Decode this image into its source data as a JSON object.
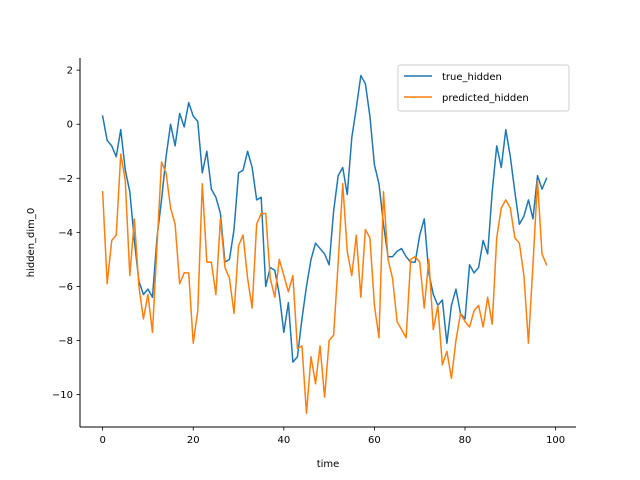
{
  "chart_data": {
    "type": "line",
    "title": "",
    "xlabel": "time",
    "ylabel": "hidden_dim_0",
    "xlim": [
      -5,
      104.5
    ],
    "ylim": [
      -11.2,
      2.45
    ],
    "xticks": [
      0,
      20,
      40,
      60,
      80,
      100
    ],
    "yticks": [
      2,
      0,
      -2,
      -4,
      -6,
      -8,
      -10
    ],
    "xtick_labels": [
      "0",
      "20",
      "40",
      "60",
      "80",
      "100"
    ],
    "ytick_labels": [
      "2",
      "0",
      "−2",
      "−4",
      "−6",
      "−8",
      "−10"
    ],
    "grid": false,
    "legend_position": "top-right",
    "series": [
      {
        "name": "true_hidden",
        "color": "#1f77b4",
        "values": [
          0.3,
          -0.6,
          -0.8,
          -1.2,
          -0.2,
          -1.7,
          -2.5,
          -4.3,
          -5.8,
          -6.3,
          -6.1,
          -6.4,
          -4.2,
          -2.8,
          -1.2,
          0.0,
          -0.8,
          0.4,
          -0.1,
          0.8,
          0.3,
          0.1,
          -1.8,
          -1.0,
          -2.4,
          -2.7,
          -3.3,
          -5.1,
          -5.0,
          -3.9,
          -1.8,
          -1.7,
          -1.0,
          -1.6,
          -2.8,
          -2.7,
          -6.0,
          -5.3,
          -5.4,
          -6.3,
          -7.7,
          -6.6,
          -8.8,
          -8.6,
          -7.2,
          -6.0,
          -5.0,
          -4.4,
          -4.6,
          -4.8,
          -5.2,
          -3.2,
          -1.9,
          -1.6,
          -2.6,
          -0.5,
          0.6,
          1.8,
          1.5,
          0.3,
          -1.5,
          -2.2,
          -3.7,
          -4.9,
          -4.9,
          -4.7,
          -4.6,
          -4.9,
          -5.1,
          -5.1,
          -4.1,
          -3.5,
          -5.5,
          -6.3,
          -6.7,
          -6.5,
          -8.1,
          -6.7,
          -6.1,
          -7.0,
          -7.2,
          -5.2,
          -5.5,
          -5.3,
          -4.3,
          -4.8,
          -2.5,
          -0.8,
          -1.6,
          -0.2,
          -1.2,
          -2.5,
          -3.7,
          -3.4,
          -2.8,
          -3.5,
          -1.9,
          -2.4,
          -2.0
        ]
      },
      {
        "name": "predicted_hidden",
        "color": "#ff7f0e",
        "values": [
          -2.5,
          -5.9,
          -4.3,
          -4.1,
          -1.1,
          -2.1,
          -5.6,
          -3.5,
          -6.0,
          -7.2,
          -6.3,
          -7.7,
          -4.5,
          -1.4,
          -1.8,
          -3.1,
          -3.7,
          -5.9,
          -5.5,
          -5.5,
          -8.1,
          -6.9,
          -2.2,
          -5.1,
          -5.1,
          -6.3,
          -3.5,
          -5.3,
          -5.7,
          -7.0,
          -4.5,
          -4.1,
          -5.7,
          -6.8,
          -3.7,
          -3.3,
          -3.3,
          -5.7,
          -6.4,
          -5.0,
          -5.6,
          -6.2,
          -5.6,
          -8.3,
          -8.2,
          -10.7,
          -8.6,
          -9.6,
          -8.2,
          -10.1,
          -8.0,
          -7.8,
          -5.1,
          -2.2,
          -4.7,
          -5.6,
          -4.1,
          -6.4,
          -3.9,
          -4.2,
          -6.7,
          -7.9,
          -2.5,
          -5.0,
          -5.7,
          -7.3,
          -7.6,
          -7.9,
          -5.0,
          -4.9,
          -5.1,
          -6.8,
          -5.0,
          -7.6,
          -6.7,
          -8.9,
          -8.4,
          -9.4,
          -8.0,
          -7.0,
          -7.3,
          -7.5,
          -6.9,
          -6.7,
          -7.5,
          -6.4,
          -7.4,
          -4.2,
          -3.1,
          -2.8,
          -3.1,
          -4.2,
          -4.4,
          -5.6,
          -8.1,
          -5.2,
          -2.1,
          -4.8,
          -5.2
        ]
      }
    ]
  }
}
